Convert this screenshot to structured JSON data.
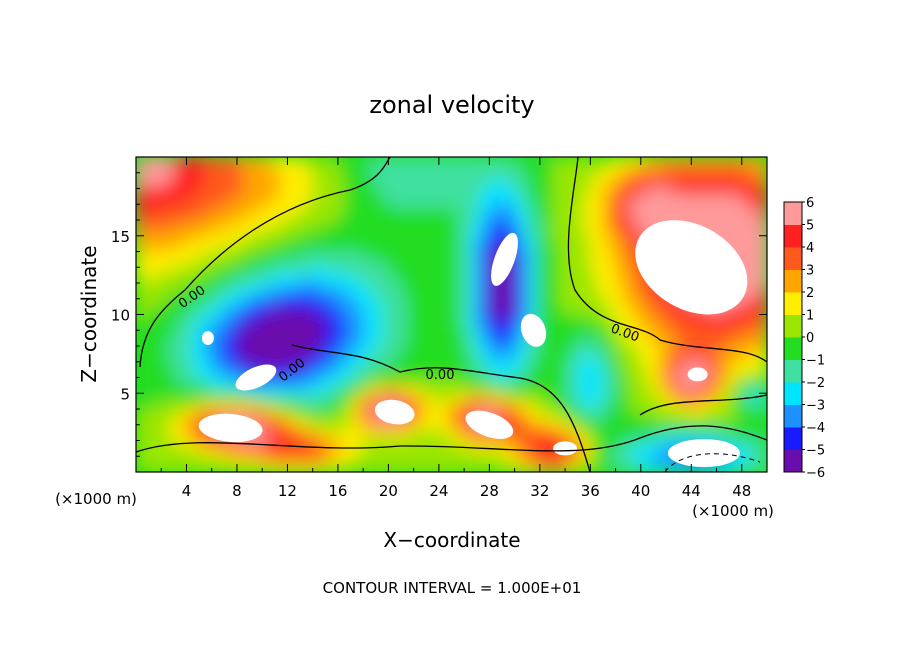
{
  "chart_data": {
    "type": "heatmap",
    "title": "zonal velocity",
    "xlabel": "X−coordinate",
    "ylabel": "Z−coordinate",
    "x_unit": "(×1000 m)",
    "x_unit_right": "(×1000 m)",
    "footer": "CONTOUR INTERVAL = 1.000E+01",
    "xlim": [
      0,
      50
    ],
    "ylim": [
      0,
      20
    ],
    "x_ticks": [
      "4",
      "8",
      "12",
      "16",
      "20",
      "24",
      "28",
      "32",
      "36",
      "40",
      "44",
      "48"
    ],
    "y_ticks": [
      "5",
      "10",
      "15"
    ],
    "colorbar": {
      "range": [
        -6,
        6
      ],
      "tick_labels": [
        "6",
        "5",
        "4",
        "3",
        "2",
        "1",
        "0",
        "−1",
        "−2",
        "−3",
        "−4",
        "−5",
        "−6"
      ],
      "colors": [
        "#6a0dad",
        "#1a1aff",
        "#1e90ff",
        "#00e5ff",
        "#40e0a0",
        "#22dd22",
        "#9ae600",
        "#ffee00",
        "#ffa500",
        "#ff5a1e",
        "#ff2020",
        "#ff9a9a"
      ]
    },
    "contour_labels": [
      "0.00",
      "0.00",
      "0.00",
      "0.00"
    ],
    "features": [
      {
        "kind": "saturated-positive",
        "x": 44,
        "z": 13,
        "value": 6.5
      },
      {
        "kind": "saturated-negative",
        "x": 29,
        "z": 13,
        "value": -6.5
      },
      {
        "kind": "saturated-positive",
        "x": 7,
        "z": 3,
        "value": 6.5
      },
      {
        "kind": "saturated-positive",
        "x": 20,
        "z": 4,
        "value": 6.5
      },
      {
        "kind": "saturated-positive",
        "x": 28,
        "z": 3,
        "value": 6.5
      },
      {
        "kind": "saturated-negative",
        "x": 10,
        "z": 7,
        "value": -6.5
      }
    ]
  }
}
